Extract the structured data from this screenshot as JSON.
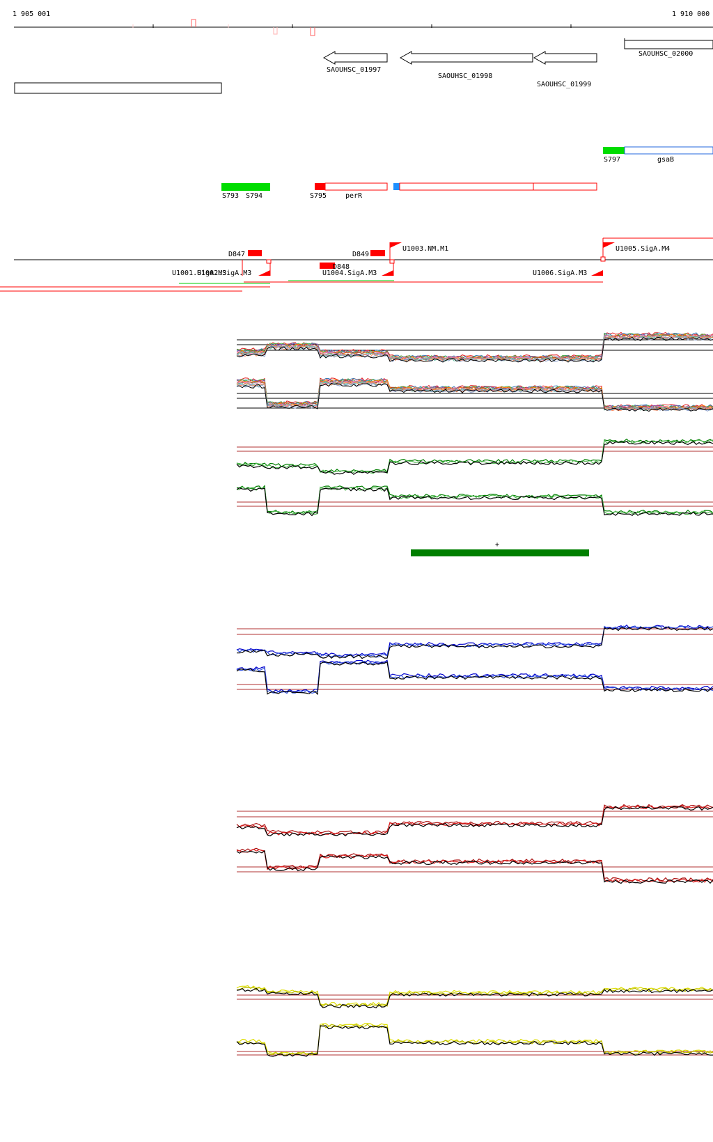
{
  "ruler": {
    "start_label": "1 905 001",
    "end_label": "1 910 000"
  },
  "genes": [
    {
      "label": "SAOUHSC_01997",
      "strand": "-"
    },
    {
      "label": "SAOUHSC_01998",
      "strand": "-"
    },
    {
      "label": "SAOUHSC_01999",
      "strand": "-"
    },
    {
      "label": "SAOUHSC_02000",
      "strand": "+"
    }
  ],
  "segment_labels": {
    "s797": "S797",
    "gsab": "gsaB",
    "s793": "S793",
    "s794": "S794",
    "s795": "S795",
    "perr": "perR"
  },
  "features": {
    "d847": "D847",
    "d849": "D849",
    "d848": "D848",
    "u1003": "U1003.NM.M1",
    "u1005": "U1005.SigA.M4",
    "u1001": "U1001.SigA.M3",
    "u1002": "U1002.SigA.M3",
    "u1004": "U1004.SigA.M3",
    "u1006": "U1006.SigA.M3"
  },
  "marker": {
    "label": "+"
  },
  "colors": {
    "red": "#ff0000",
    "green": "#00dd00",
    "dark_green": "#007f00",
    "blue": "#0000cc",
    "blue_box": "#2266dd",
    "cyan_start": "#1e90ff",
    "yellow": "#dddd00",
    "thresholds": "#b03030"
  }
}
